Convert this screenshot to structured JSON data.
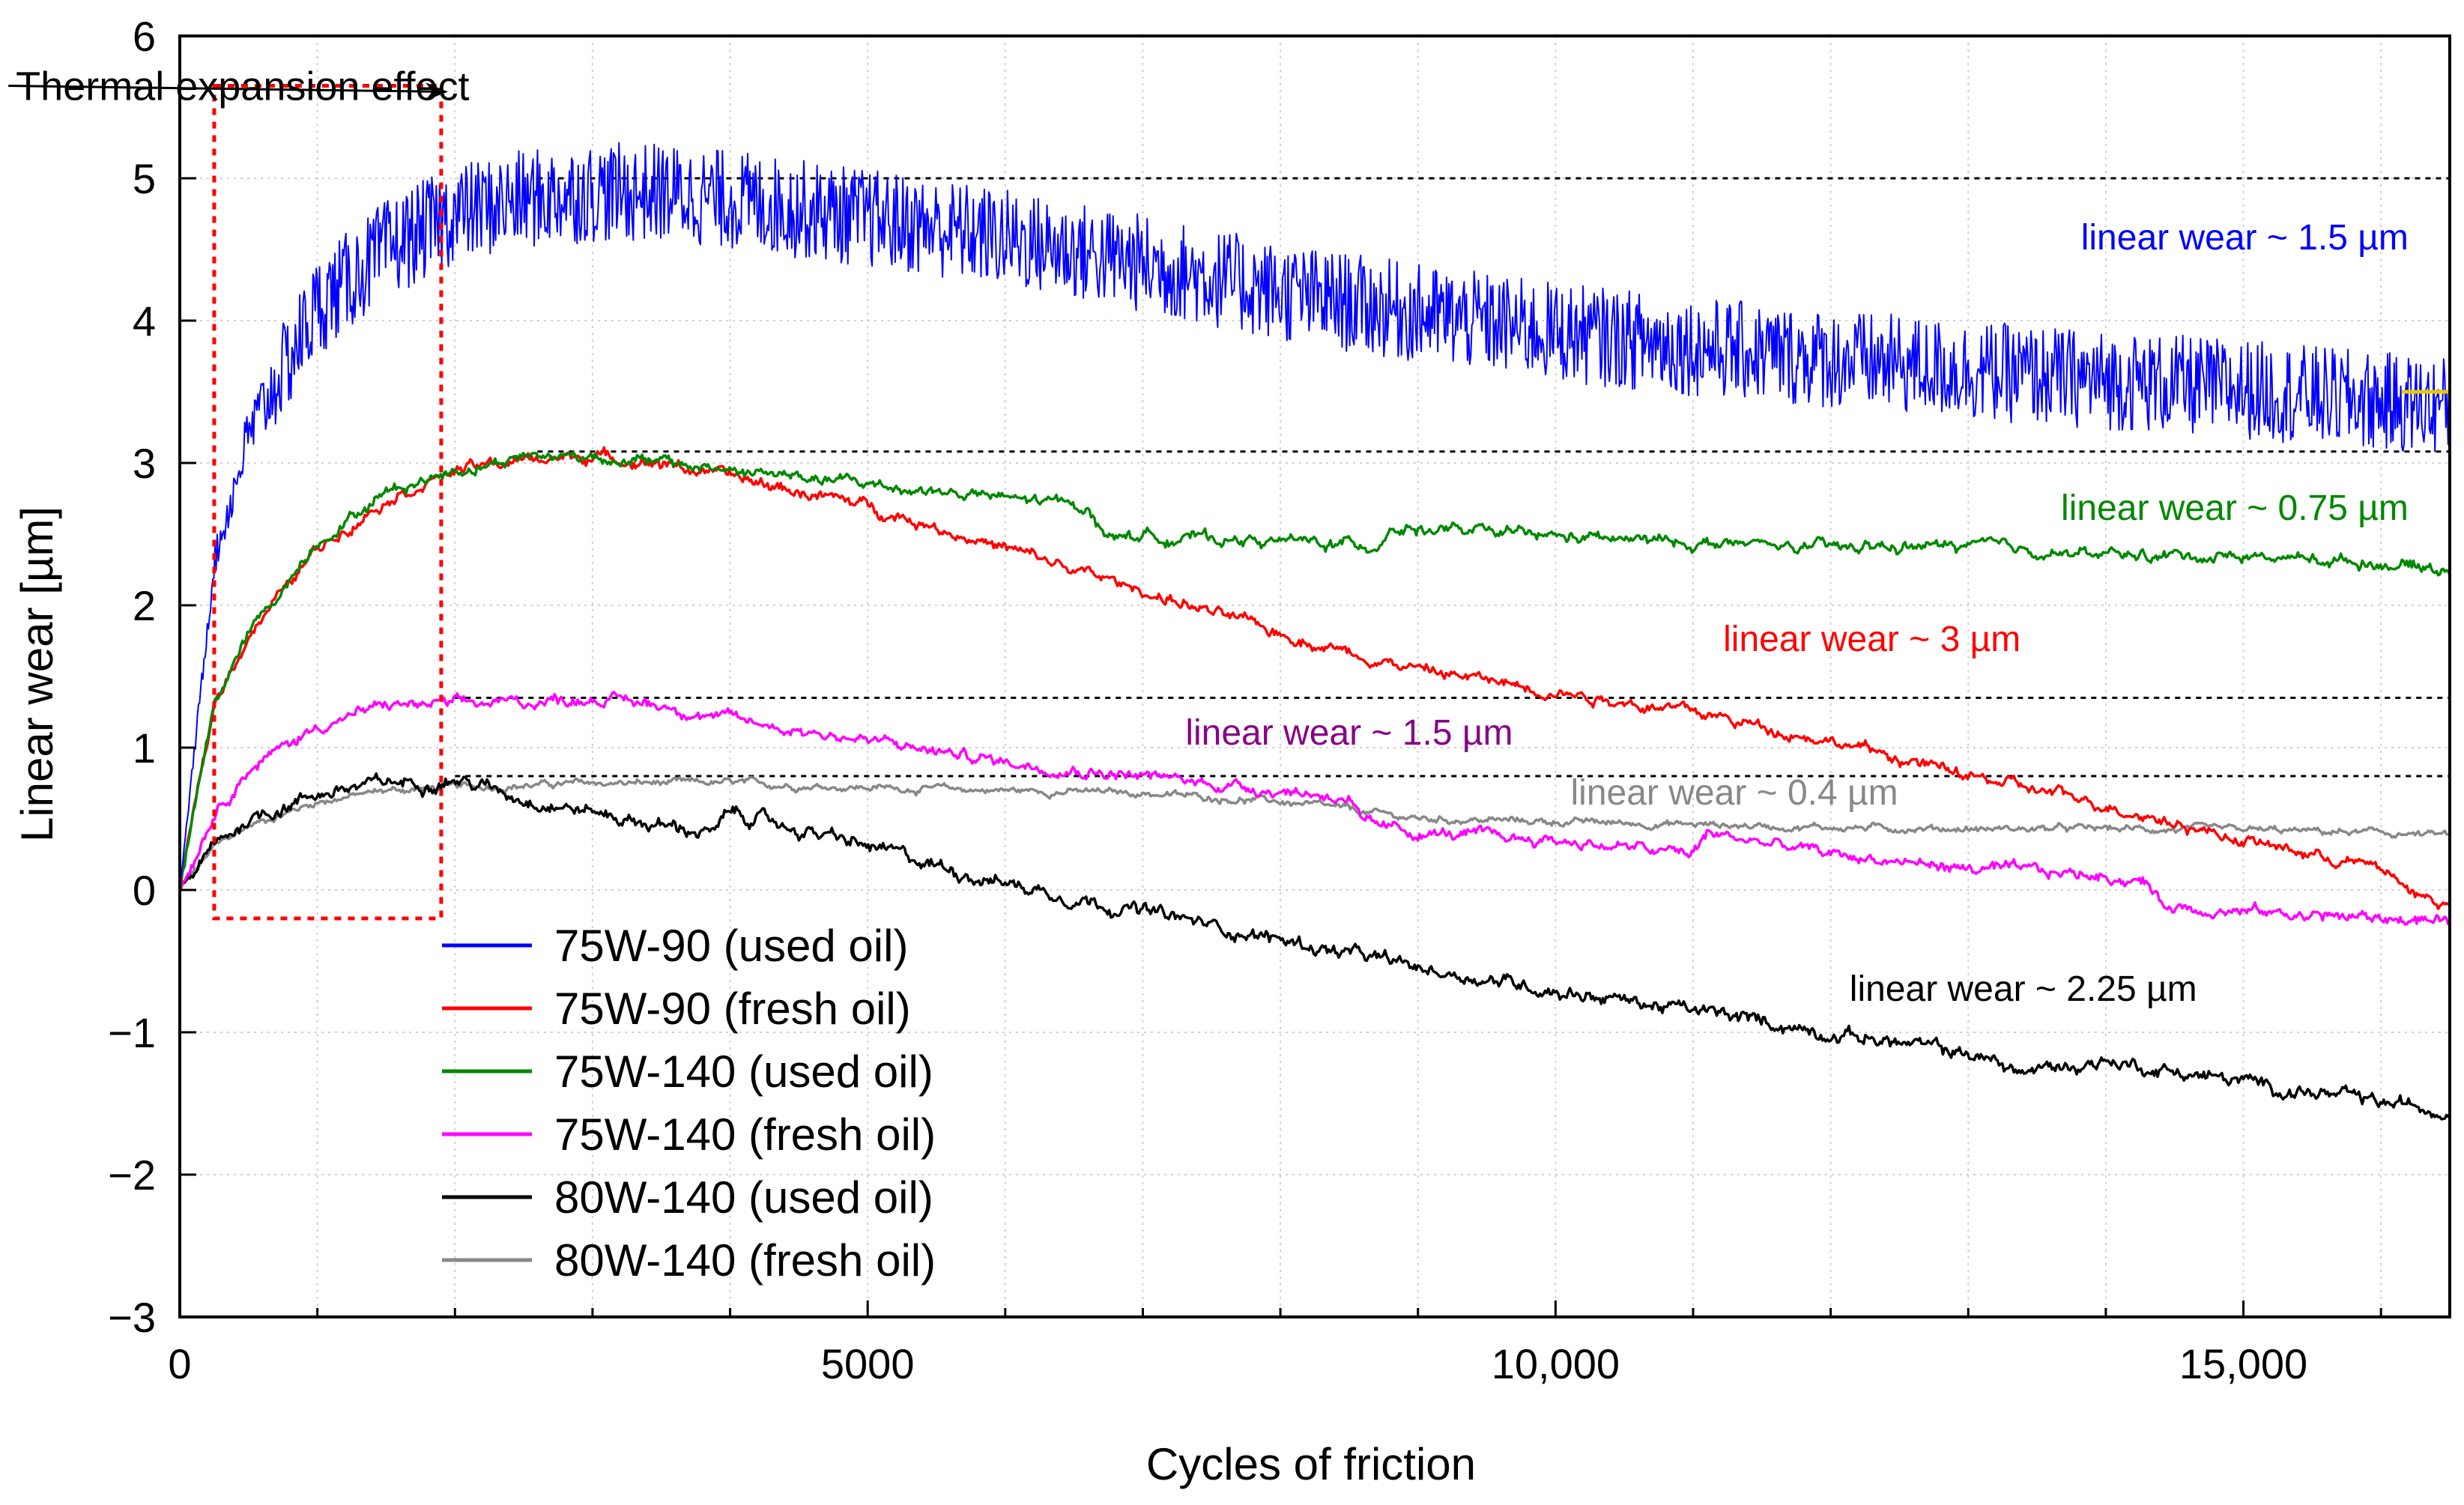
{
  "chart_data": {
    "type": "line",
    "title": "",
    "xlabel": "Cycles of friction",
    "ylabel": "Linear wear [µm]",
    "xlim": [
      0,
      16500
    ],
    "ylim": [
      -3,
      6
    ],
    "x_ticks": [
      {
        "value": 0,
        "label": "0"
      },
      {
        "value": 5000,
        "label": "5000"
      },
      {
        "value": 10000,
        "label": "10,000"
      },
      {
        "value": 15000,
        "label": "15,000"
      }
    ],
    "y_ticks": [
      {
        "value": 6,
        "label": "6"
      },
      {
        "value": 5,
        "label": "5"
      },
      {
        "value": 4,
        "label": "4"
      },
      {
        "value": 3,
        "label": "3"
      },
      {
        "value": 2,
        "label": "2"
      },
      {
        "value": 1,
        "label": "1"
      },
      {
        "value": 0,
        "label": "0"
      },
      {
        "value": -1,
        "label": "−1"
      },
      {
        "value": -2,
        "label": "−2"
      },
      {
        "value": -3,
        "label": "−3"
      }
    ],
    "grid": true,
    "legend_position": "bottom-left",
    "series": [
      {
        "name": "75W-90 (used oil)",
        "color": "#0000ff",
        "x": [
          0,
          250,
          500,
          1000,
          1500,
          2000,
          2500,
          3000,
          3500,
          4000,
          5000,
          6000,
          7000,
          8000,
          9000,
          10000,
          11000,
          12000,
          13000,
          14000,
          15000,
          16000,
          16500
        ],
        "y": [
          0,
          2.3,
          3.2,
          4.1,
          4.5,
          4.75,
          4.85,
          4.9,
          4.9,
          4.85,
          4.72,
          4.58,
          4.4,
          4.2,
          4.05,
          3.92,
          3.82,
          3.73,
          3.65,
          3.58,
          3.52,
          3.43,
          3.4
        ],
        "noise_amplitude": 0.35
      },
      {
        "name": "75W-90 (fresh oil)",
        "color": "#ff0000",
        "x": [
          0,
          250,
          500,
          1000,
          1500,
          2000,
          2500,
          3000,
          3500,
          4000,
          5000,
          6000,
          7000,
          8000,
          9000,
          10000,
          11000,
          12000,
          13000,
          14000,
          15000,
          16000,
          16300,
          16500
        ],
        "y": [
          0,
          1.3,
          1.8,
          2.4,
          2.75,
          2.95,
          3.02,
          3.05,
          3.0,
          2.9,
          2.7,
          2.4,
          2.1,
          1.8,
          1.55,
          1.4,
          1.25,
          1.05,
          0.8,
          0.6,
          0.35,
          0.15,
          -0.05,
          -0.1
        ],
        "noise_amplitude": 0.05
      },
      {
        "name": "75W-140 (used oil)",
        "color": "#008800",
        "x": [
          0,
          250,
          500,
          1000,
          1500,
          2000,
          2500,
          3000,
          3500,
          4000,
          5000,
          6000,
          6600,
          6700,
          8000,
          8700,
          8800,
          10000,
          12000,
          13000,
          14000,
          15000,
          16000,
          16500
        ],
        "y": [
          0,
          1.3,
          1.8,
          2.45,
          2.8,
          2.95,
          3.05,
          3.05,
          3.0,
          2.95,
          2.85,
          2.75,
          2.7,
          2.5,
          2.45,
          2.42,
          2.55,
          2.48,
          2.4,
          2.42,
          2.35,
          2.35,
          2.3,
          2.25
        ],
        "noise_amplitude": 0.05
      },
      {
        "name": "75W-140 (fresh oil)",
        "color": "#ff00ff",
        "x": [
          0,
          250,
          500,
          1000,
          1500,
          2000,
          2500,
          3000,
          3500,
          4000,
          5000,
          6000,
          7000,
          8000,
          8500,
          8600,
          9000,
          10000,
          10500,
          11000,
          11100,
          12000,
          13000,
          14000,
          14300,
          14400,
          15000,
          16000,
          16500
        ],
        "y": [
          0,
          0.55,
          0.85,
          1.15,
          1.3,
          1.3,
          1.32,
          1.35,
          1.3,
          1.2,
          1.05,
          0.9,
          0.8,
          0.7,
          0.65,
          0.45,
          0.4,
          0.35,
          0.3,
          0.25,
          0.4,
          0.25,
          0.15,
          0.1,
          0.05,
          -0.1,
          -0.15,
          -0.2,
          -0.22
        ],
        "noise_amplitude": 0.05
      },
      {
        "name": "80W-140 (used oil)",
        "color": "#000000",
        "x": [
          0,
          250,
          500,
          1000,
          1500,
          2000,
          2500,
          3000,
          3500,
          3900,
          4000,
          5000,
          6000,
          7000,
          8000,
          9000,
          10000,
          11000,
          12000,
          13000,
          13400,
          14000,
          15000,
          16000,
          16500
        ],
        "y": [
          0,
          0.3,
          0.5,
          0.68,
          0.75,
          0.78,
          0.65,
          0.55,
          0.45,
          0.4,
          0.55,
          0.3,
          0.05,
          -0.15,
          -0.35,
          -0.55,
          -0.7,
          -0.85,
          -1.0,
          -1.15,
          -1.28,
          -1.2,
          -1.35,
          -1.5,
          -1.55
        ],
        "noise_amplitude": 0.06
      },
      {
        "name": "80W-140 (fresh oil)",
        "color": "#888888",
        "x": [
          0,
          250,
          500,
          1000,
          1500,
          2000,
          3000,
          4000,
          5000,
          6000,
          7000,
          8000,
          9000,
          10000,
          11000,
          12000,
          13000,
          14000,
          15000,
          16000,
          16500
        ],
        "y": [
          0,
          0.3,
          0.45,
          0.62,
          0.7,
          0.72,
          0.75,
          0.75,
          0.72,
          0.7,
          0.68,
          0.62,
          0.5,
          0.48,
          0.46,
          0.44,
          0.43,
          0.43,
          0.42,
          0.4,
          0.38
        ],
        "noise_amplitude": 0.03
      }
    ],
    "reference_lines": [
      {
        "y": 5.0,
        "x_start": 2600,
        "x_end": 16500
      },
      {
        "y": 3.08,
        "x_start": 2600,
        "x_end": 16500
      },
      {
        "y": 1.35,
        "x_start": 2000,
        "x_end": 16500
      },
      {
        "y": 0.8,
        "x_start": 2000,
        "x_end": 16500
      }
    ],
    "yellow_marker": {
      "x_start": 16150,
      "x_end": 16500,
      "y": 3.5,
      "color": "#e8c800"
    },
    "annotations": [
      {
        "text": "linear wear ~ 1.5 µm",
        "color": "#0000ff",
        "x": 16200,
        "y": 4.5,
        "anchor": "end"
      },
      {
        "text": "linear wear ~ 0.75 µm",
        "color": "#008800",
        "x": 16200,
        "y": 2.6,
        "anchor": "end"
      },
      {
        "text": "linear wear ~ 3 µm",
        "color": "#ff0000",
        "x": 12300,
        "y": 1.68,
        "anchor": "middle"
      },
      {
        "text": "linear wear ~ 1.5 µm",
        "color": "#880088",
        "x": 8500,
        "y": 1.02,
        "anchor": "middle"
      },
      {
        "text": "linear wear ~ 0.4 µm",
        "color": "#888888",
        "x": 11300,
        "y": 0.6,
        "anchor": "middle"
      },
      {
        "text": "linear wear ~ 2.25 µm",
        "color": "#000000",
        "x": 13400,
        "y": -0.78,
        "anchor": "middle"
      }
    ],
    "thermal_box": {
      "x_min": 250,
      "x_max": 1900,
      "y_min": -0.2,
      "y_max": 5.65,
      "color": "#ff0000"
    },
    "thermal_annotation": {
      "text": "Thermal expansion effect",
      "arrow_to_x": 1900,
      "arrow_to_y": 5.65,
      "text_x": 3900,
      "text_y": 5.65
    }
  }
}
